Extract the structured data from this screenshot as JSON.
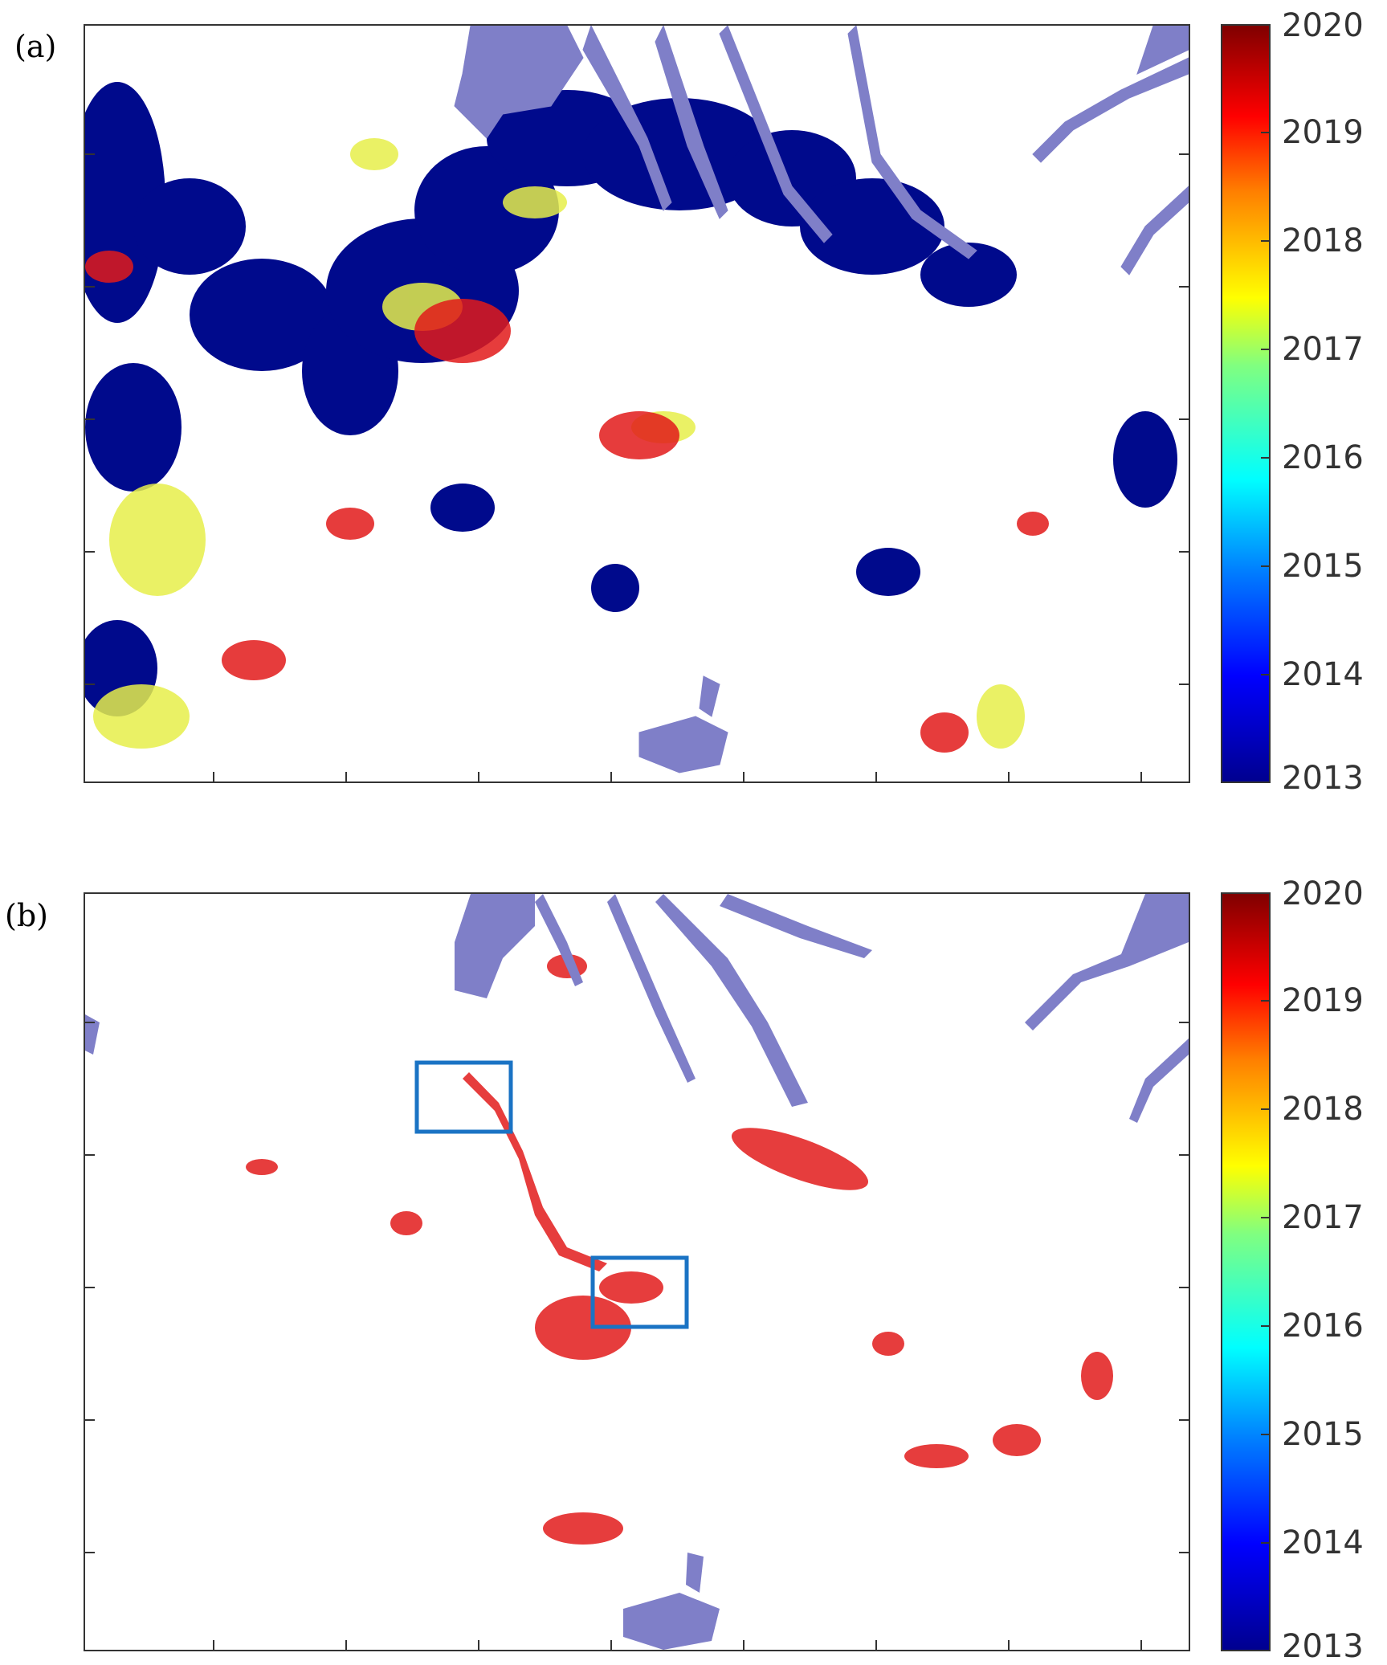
{
  "panels": [
    {
      "id": "a",
      "label": "(a)",
      "colorbar": {
        "ticks": [
          "2020",
          "2019",
          "2018",
          "2017",
          "2016",
          "2015",
          "2014",
          "2013"
        ],
        "min": 2013,
        "max": 2020
      },
      "colors": {
        "water": "#7f7fc8",
        "early": "#000a8c",
        "mid": "#e6ef4a",
        "late": "#e21a1a"
      }
    },
    {
      "id": "b",
      "label": "(b)",
      "colorbar": {
        "ticks": [
          "2020",
          "2019",
          "2018",
          "2017",
          "2016",
          "2015",
          "2014",
          "2013"
        ],
        "min": 2013,
        "max": 2020
      },
      "colors": {
        "water": "#7f7fc8",
        "highlight_box": "#1a73c4",
        "late": "#e21a1a"
      },
      "highlight_box_count": 2
    }
  ]
}
